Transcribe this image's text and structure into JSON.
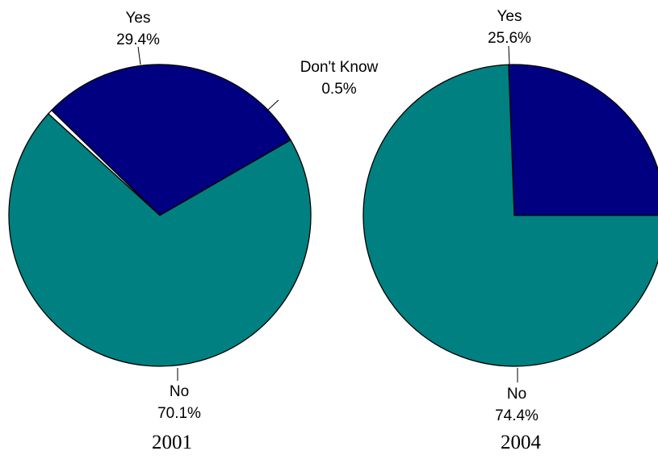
{
  "chart_data": [
    {
      "type": "pie",
      "caption": "2001",
      "slices": [
        {
          "label": "Yes",
          "value_text": "29.4%",
          "value": 29.4,
          "color": "#000080"
        },
        {
          "label": "Don't Know",
          "value_text": "0.5%",
          "value": 0.5,
          "color": "#ffffff"
        },
        {
          "label": "No",
          "value_text": "70.1%",
          "value": 70.1,
          "color": "#008080"
        }
      ]
    },
    {
      "type": "pie",
      "caption": "2004",
      "slices": [
        {
          "label": "Yes",
          "value_text": "25.6%",
          "value": 25.6,
          "color": "#000080"
        },
        {
          "label": "No",
          "value_text": "74.4%",
          "value": 74.4,
          "color": "#008080"
        }
      ]
    }
  ]
}
